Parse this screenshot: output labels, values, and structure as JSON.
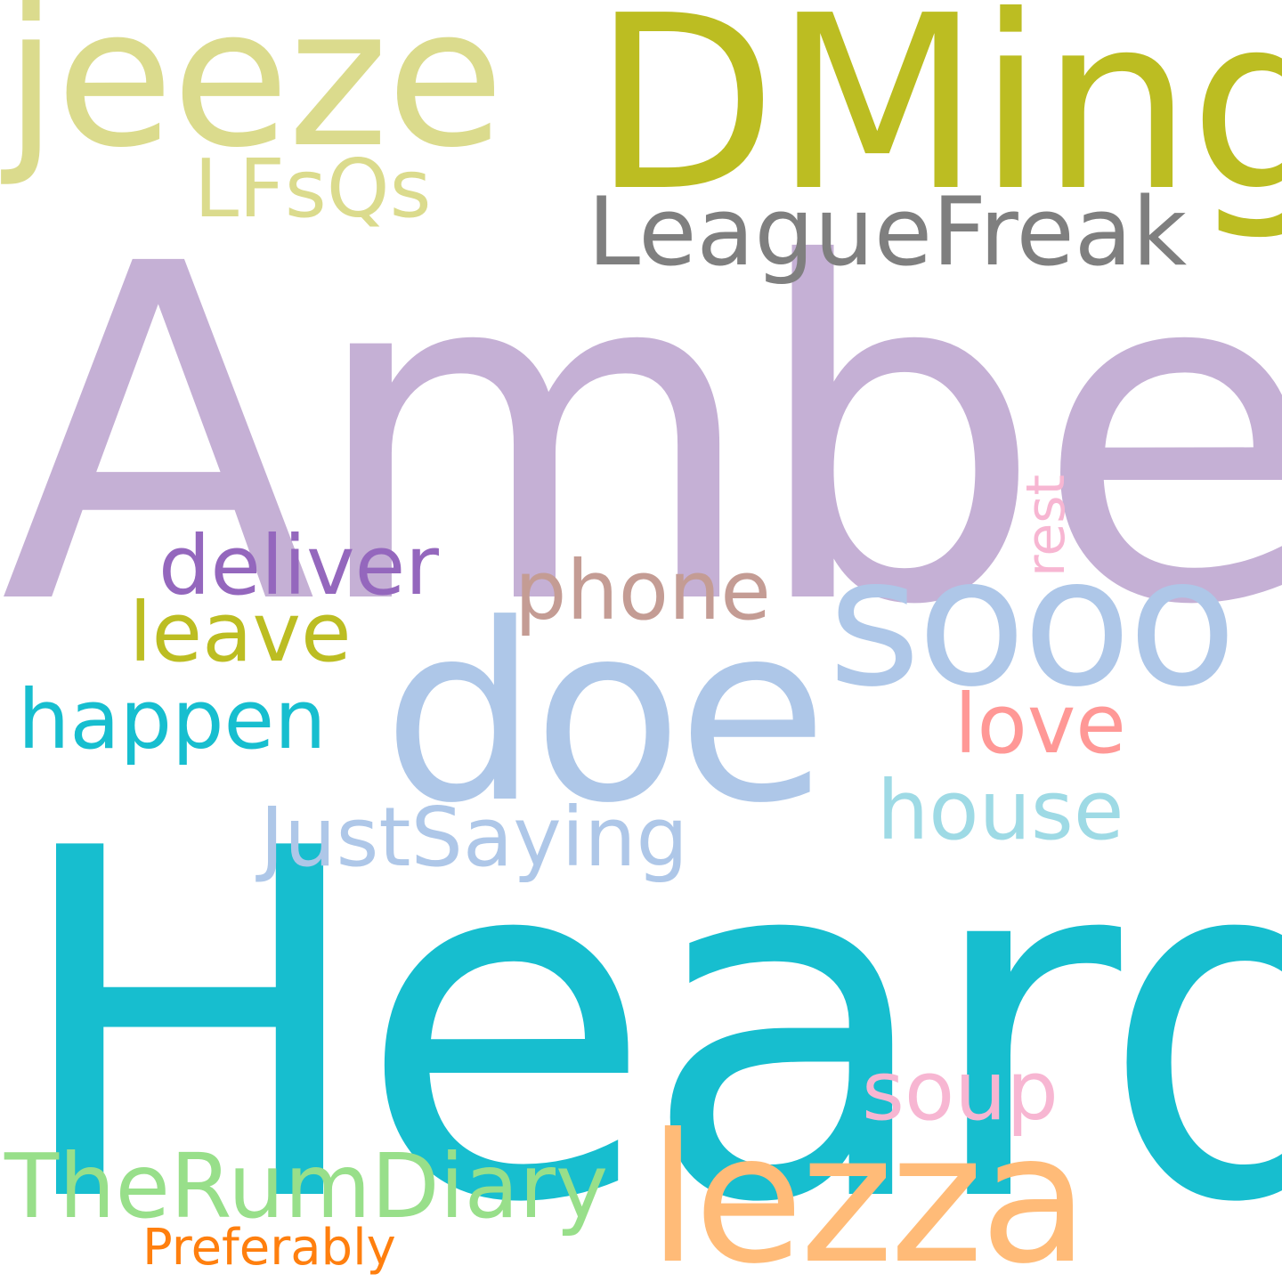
{
  "words": [
    {
      "id": "w-amber",
      "name": "word-amber",
      "text": "Amber",
      "color": "#c5b0d5"
    },
    {
      "id": "w-heard",
      "name": "word-heard",
      "text": "Heard",
      "color": "#17becf"
    },
    {
      "id": "w-dming",
      "name": "word-dming",
      "text": "DMing",
      "color": "#bcbd22"
    },
    {
      "id": "w-jeeze",
      "name": "word-jeeze",
      "text": "jeeze",
      "color": "#dbdb8d"
    },
    {
      "id": "w-leaguefreak",
      "name": "word-leaguefreak",
      "text": "LeagueFreak",
      "color": "#7f7f7f"
    },
    {
      "id": "w-lfsqs",
      "name": "word-lfsqs",
      "text": "LFsQs",
      "color": "#dbdb8d"
    },
    {
      "id": "w-doe",
      "name": "word-doe",
      "text": "doe",
      "color": "#aec7e8"
    },
    {
      "id": "w-sooo",
      "name": "word-sooo",
      "text": "sooo",
      "color": "#aec7e8"
    },
    {
      "id": "w-lezza",
      "name": "word-lezza",
      "text": "lezza",
      "color": "#ffbb78"
    },
    {
      "id": "w-deliver",
      "name": "word-deliver",
      "text": "deliver",
      "color": "#9467bd"
    },
    {
      "id": "w-phone",
      "name": "word-phone",
      "text": "phone",
      "color": "#c49c94"
    },
    {
      "id": "w-leave",
      "name": "word-leave",
      "text": "leave",
      "color": "#bcbd22"
    },
    {
      "id": "w-happen",
      "name": "word-happen",
      "text": "happen",
      "color": "#17becf"
    },
    {
      "id": "w-love",
      "name": "word-love",
      "text": "love",
      "color": "#ff9896"
    },
    {
      "id": "w-house",
      "name": "word-house",
      "text": "house",
      "color": "#9edae5"
    },
    {
      "id": "w-justsaying",
      "name": "word-justsaying",
      "text": "JustSaying",
      "color": "#aec7e8"
    },
    {
      "id": "w-soup",
      "name": "word-soup",
      "text": "soup",
      "color": "#f7b6d2"
    },
    {
      "id": "w-therumdiary",
      "name": "word-therumdiary",
      "text": "TheRumDiary",
      "color": "#98df8a"
    },
    {
      "id": "w-preferably",
      "name": "word-preferably",
      "text": "Preferably",
      "color": "#ff7f0e"
    },
    {
      "id": "w-rest",
      "name": "word-rest",
      "text": "rest",
      "color": "#f7b6d2"
    }
  ]
}
